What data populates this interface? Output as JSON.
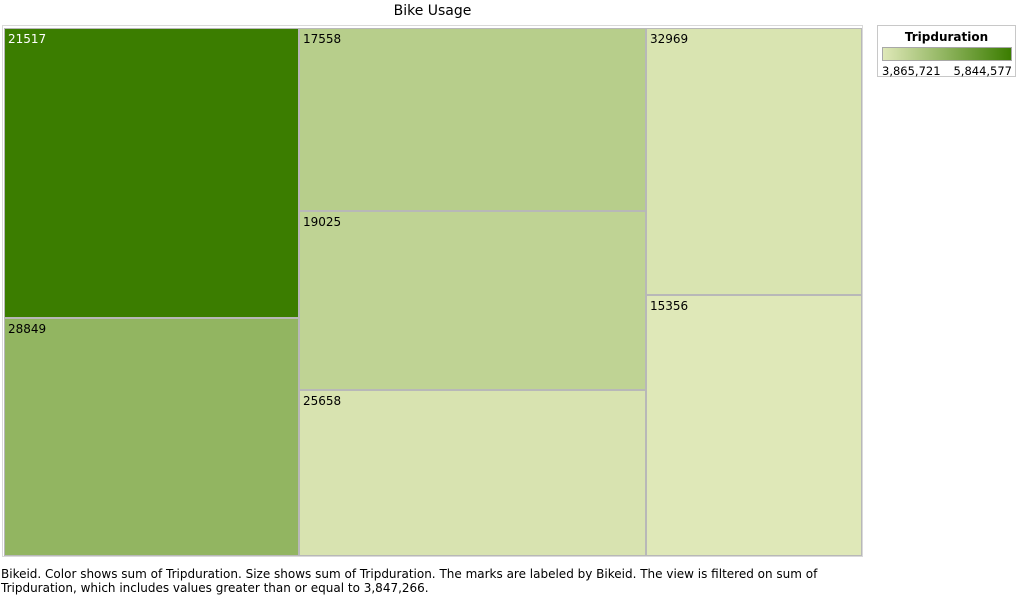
{
  "chart_data": {
    "type": "treemap",
    "title": "Bike Usage",
    "dimension": "Bikeid",
    "measure": "Tripduration",
    "items": [
      {
        "label": "21517",
        "value": 5844577
      },
      {
        "label": "28849",
        "value": 4800000
      },
      {
        "label": "17558",
        "value": 4350000
      },
      {
        "label": "19025",
        "value": 4250000
      },
      {
        "label": "25658",
        "value": 3950000
      },
      {
        "label": "32969",
        "value": 3940000
      },
      {
        "label": "15356",
        "value": 3865721
      }
    ],
    "color_scale": {
      "title": "Tripduration",
      "min_label": "3,865,721",
      "max_label": "5,844,577",
      "min_value": 3865721,
      "max_value": 5844577,
      "min_color": "#dfe8b8",
      "max_color": "#3b7d00"
    }
  },
  "caption": "Bikeid.  Color shows sum of Tripduration.  Size shows sum of Tripduration.  The marks are labeled by Bikeid. The view is filtered on sum of Tripduration, which includes values greater than or equal to 3,847,266."
}
